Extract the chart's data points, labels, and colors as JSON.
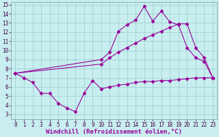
{
  "xlabel": "Windchill (Refroidissement éolien,°C)",
  "background_color": "#c8eef0",
  "line_color": "#990099",
  "grid_color": "#99cccc",
  "xlim": [
    -0.5,
    23.5
  ],
  "ylim": [
    2.5,
    15.3
  ],
  "xticks": [
    0,
    1,
    2,
    3,
    4,
    5,
    6,
    7,
    8,
    9,
    10,
    11,
    12,
    13,
    14,
    15,
    16,
    17,
    18,
    19,
    20,
    21,
    22,
    23
  ],
  "yticks": [
    3,
    4,
    5,
    6,
    7,
    8,
    9,
    10,
    11,
    12,
    13,
    14,
    15
  ],
  "line1_x": [
    0,
    1,
    2,
    3,
    4,
    5,
    6,
    7,
    8,
    9,
    10,
    11,
    12,
    13,
    14,
    15,
    16,
    17,
    18,
    19,
    20,
    21,
    22,
    23
  ],
  "line1_y": [
    7.5,
    7.0,
    6.5,
    5.3,
    5.3,
    4.2,
    3.7,
    3.3,
    5.3,
    6.7,
    5.8,
    6.0,
    6.2,
    6.3,
    6.5,
    6.6,
    6.6,
    6.7,
    6.7,
    6.8,
    6.9,
    7.0,
    7.0,
    7.0
  ],
  "line2_x": [
    0,
    10,
    11,
    12,
    13,
    14,
    15,
    16,
    17,
    18,
    19,
    20,
    21,
    22,
    23
  ],
  "line2_y": [
    7.5,
    9.0,
    9.8,
    12.1,
    12.8,
    13.3,
    14.8,
    13.2,
    14.3,
    13.1,
    12.8,
    10.3,
    9.2,
    8.8,
    7.0
  ],
  "line3_x": [
    0,
    10,
    11,
    12,
    13,
    14,
    15,
    16,
    17,
    18,
    19,
    20,
    21,
    22,
    23
  ],
  "line3_y": [
    7.5,
    8.5,
    9.2,
    9.8,
    10.3,
    10.8,
    11.3,
    11.7,
    12.1,
    12.5,
    12.9,
    12.9,
    10.3,
    9.2,
    7.0
  ],
  "marker": "D",
  "markersize": 2.5,
  "linewidth": 0.8,
  "tick_fontsize": 5.5,
  "xlabel_fontsize": 6.5
}
